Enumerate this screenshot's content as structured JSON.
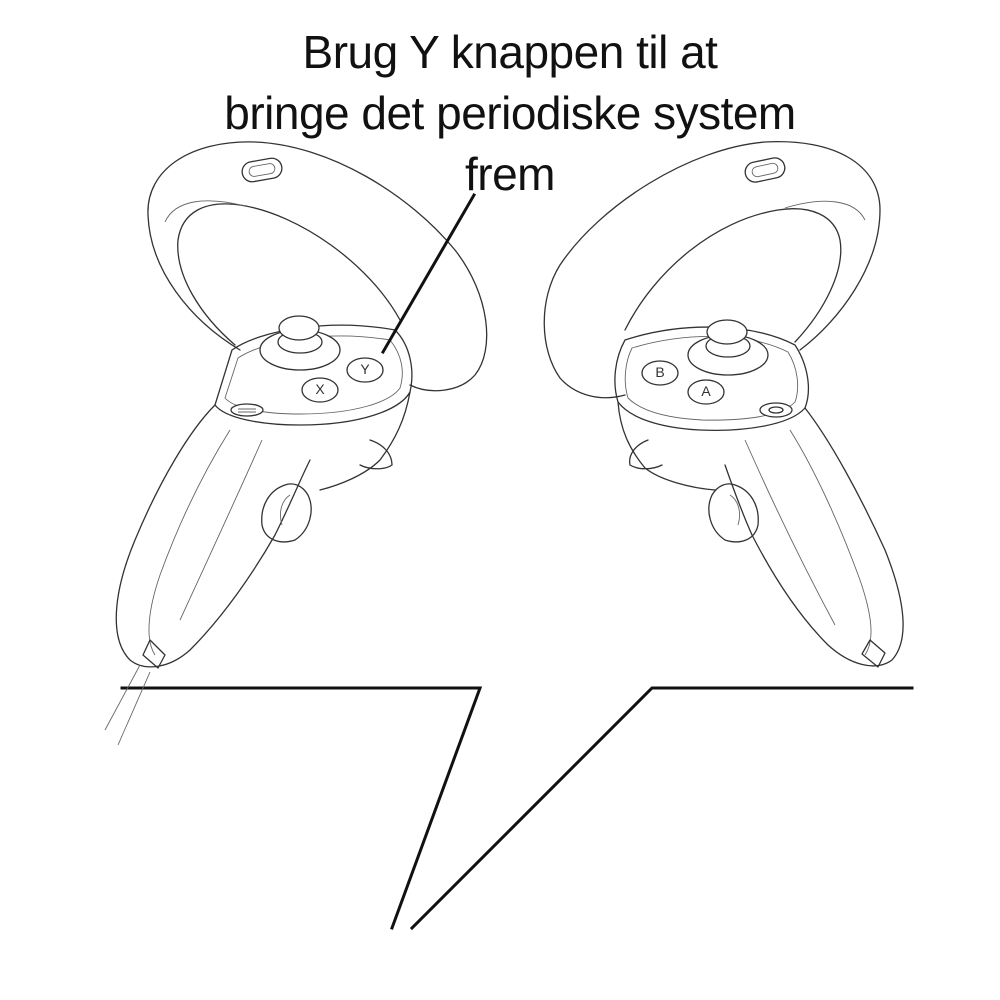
{
  "caption": {
    "line1": "Brug Y knappen til at",
    "line2": "bringe det periodiske system",
    "line3": "frem"
  },
  "left_controller": {
    "buttons": [
      "X",
      "Y"
    ]
  },
  "right_controller": {
    "buttons": [
      "B",
      "A"
    ]
  },
  "colors": {
    "ink": "#111111",
    "line_art": "#333333",
    "background": "#ffffff"
  }
}
